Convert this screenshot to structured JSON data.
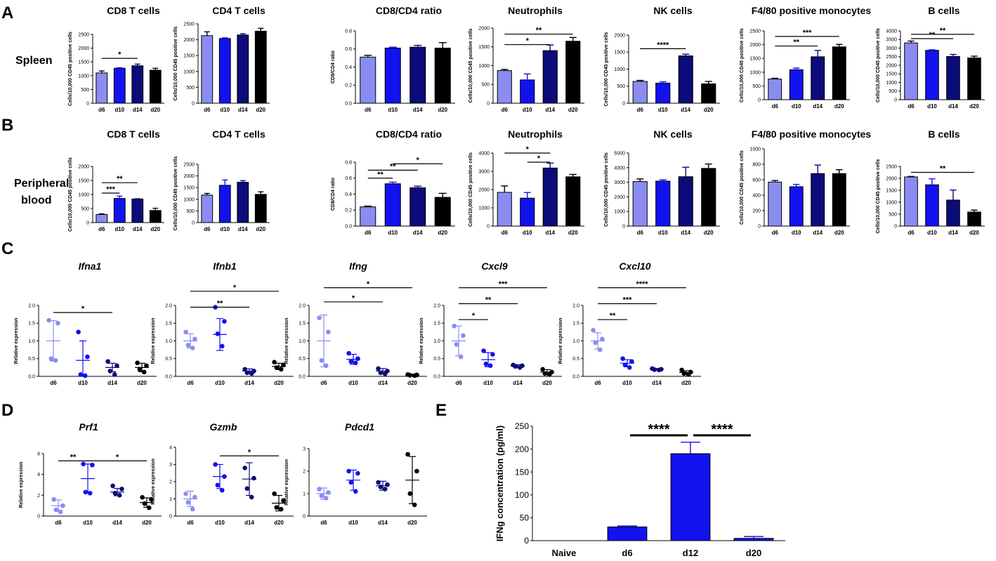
{
  "figure": {
    "panel_letters": [
      "A",
      "B",
      "C",
      "D",
      "E"
    ],
    "row_labels": {
      "spleen": "Spleen",
      "peripheral_line1": "Peripheral",
      "peripheral_line2": "blood"
    },
    "colors": {
      "d6": "#8a8cf2",
      "d10": "#1212ee",
      "d14": "#0b0b7a",
      "d20": "#000000",
      "axis": "#000000"
    }
  },
  "chart_data": [
    {
      "id": "A1",
      "type": "bar",
      "title": "CD8 T cells",
      "ylabel": "Cells/10,000 CD45 positive cells",
      "ylim": [
        0,
        2500
      ],
      "yticks": [
        0,
        500,
        1000,
        1500,
        2000,
        2500
      ],
      "categories": [
        "d6",
        "d10",
        "d14",
        "d20"
      ],
      "values": [
        1100,
        1270,
        1360,
        1200
      ],
      "errors": [
        70,
        20,
        60,
        70
      ],
      "sig": [
        {
          "from": 0,
          "to": 2,
          "label": "*",
          "y": 1630
        }
      ]
    },
    {
      "id": "A2",
      "type": "bar",
      "title": "CD4 T cells",
      "ylabel": "Cells/10,000 CD45 positive cells",
      "ylim": [
        0,
        2500
      ],
      "yticks": [
        0,
        500,
        1000,
        1500,
        2000,
        2500
      ],
      "categories": [
        "d6",
        "d10",
        "d14",
        "d20"
      ],
      "values": [
        2130,
        2040,
        2150,
        2270
      ],
      "errors": [
        120,
        20,
        40,
        90
      ],
      "sig": []
    },
    {
      "id": "A3",
      "type": "bar",
      "title": "CD8/CD4 ratio",
      "ylabel": "CD8/CD4 ratio",
      "ylim": [
        0,
        0.8
      ],
      "yticks": [
        0.0,
        0.2,
        0.4,
        0.6,
        0.8
      ],
      "categories": [
        "d6",
        "d10",
        "d14",
        "d20"
      ],
      "values": [
        0.51,
        0.61,
        0.62,
        0.61
      ],
      "errors": [
        0.02,
        0.01,
        0.02,
        0.06
      ],
      "sig": []
    },
    {
      "id": "A4",
      "type": "bar",
      "title": "Neutrophils",
      "ylabel": "Cells/10,000 CD45 positive cells",
      "ylim": [
        0,
        2000
      ],
      "yticks": [
        0,
        500,
        1000,
        1500,
        2000
      ],
      "categories": [
        "d6",
        "d10",
        "d14",
        "d20"
      ],
      "values": [
        870,
        620,
        1400,
        1650
      ],
      "errors": [
        30,
        160,
        150,
        100
      ],
      "sig": [
        {
          "from": 0,
          "to": 2,
          "label": "*",
          "y": 1560
        },
        {
          "from": 0,
          "to": 3,
          "label": "**",
          "y": 1840
        }
      ]
    },
    {
      "id": "A5",
      "type": "bar",
      "title": "NK cells",
      "ylabel": "Cells/10,000 CD45 positive cells",
      "ylim": [
        0,
        2000
      ],
      "yticks": [
        0,
        500,
        1000,
        1500,
        2000
      ],
      "categories": [
        "d6",
        "d10",
        "d14",
        "d20"
      ],
      "values": [
        640,
        590,
        1390,
        570
      ],
      "errors": [
        30,
        40,
        50,
        70
      ],
      "sig": [
        {
          "from": 0,
          "to": 2,
          "label": "****",
          "y": 1600
        }
      ]
    },
    {
      "id": "A6",
      "type": "bar",
      "title": "F4/80 positive monocytes",
      "ylabel": "Cells/10,000 CD45 positive cells",
      "ylim": [
        0,
        2500
      ],
      "yticks": [
        0,
        500,
        1000,
        1500,
        2000,
        2500
      ],
      "categories": [
        "d6",
        "d10",
        "d14",
        "d20"
      ],
      "values": [
        750,
        1090,
        1560,
        1920
      ],
      "errors": [
        30,
        60,
        230,
        90
      ],
      "sig": [
        {
          "from": 0,
          "to": 2,
          "label": "**",
          "y": 1950
        },
        {
          "from": 0,
          "to": 3,
          "label": "***",
          "y": 2300
        }
      ]
    },
    {
      "id": "A7",
      "type": "bar",
      "title": "B cells",
      "ylabel": "Cells/10,000 CD45 positive cells",
      "ylim": [
        0,
        4000
      ],
      "yticks": [
        0,
        500,
        1000,
        1500,
        2000,
        2500,
        3000,
        3500,
        4000
      ],
      "categories": [
        "d6",
        "d10",
        "d14",
        "d20"
      ],
      "values": [
        3300,
        2870,
        2510,
        2430
      ],
      "errors": [
        110,
        30,
        120,
        100
      ],
      "sig": [
        {
          "from": 0,
          "to": 2,
          "label": "**",
          "y": 3550
        },
        {
          "from": 0,
          "to": 3,
          "label": "**",
          "y": 3800
        }
      ]
    },
    {
      "id": "B1",
      "type": "bar",
      "title": "CD8 T cells",
      "ylabel": "Cells/10,000 CD45 positive cells",
      "ylim": [
        0,
        2000
      ],
      "yticks": [
        0,
        500,
        1000,
        1500,
        2000
      ],
      "categories": [
        "d6",
        "d10",
        "d14",
        "d20"
      ],
      "values": [
        290,
        860,
        840,
        430
      ],
      "errors": [
        20,
        80,
        10,
        80
      ],
      "sig": [
        {
          "from": 0,
          "to": 1,
          "label": "***",
          "y": 1050
        },
        {
          "from": 0,
          "to": 2,
          "label": "**",
          "y": 1420
        }
      ]
    },
    {
      "id": "B2",
      "type": "bar",
      "title": "CD4 T cells",
      "ylabel": "Cells/10,000 CD45 positive cells",
      "ylim": [
        0,
        2500
      ],
      "yticks": [
        0,
        500,
        1000,
        1500,
        2000,
        2500
      ],
      "categories": [
        "d6",
        "d10",
        "d14",
        "d20"
      ],
      "values": [
        1180,
        1600,
        1730,
        1210
      ],
      "errors": [
        70,
        230,
        70,
        110
      ],
      "sig": []
    },
    {
      "id": "B3",
      "type": "bar",
      "title": "CD8/CD4 ratio",
      "ylabel": "CD8/CD4 ratio",
      "ylim": [
        0,
        0.8
      ],
      "yticks": [
        0.0,
        0.2,
        0.4,
        0.6,
        0.8
      ],
      "categories": [
        "d6",
        "d10",
        "d14",
        "d20"
      ],
      "values": [
        0.24,
        0.53,
        0.48,
        0.36
      ],
      "errors": [
        0.01,
        0.02,
        0.02,
        0.05
      ],
      "sig": [
        {
          "from": 0,
          "to": 1,
          "label": "**",
          "y": 0.6
        },
        {
          "from": 0,
          "to": 2,
          "label": "**",
          "y": 0.7
        },
        {
          "from": 1,
          "to": 3,
          "label": "*",
          "y": 0.78
        }
      ]
    },
    {
      "id": "B4",
      "type": "bar",
      "title": "Neutrophils",
      "ylabel": "Cells/10,000 CD45 positive cells",
      "ylim": [
        0,
        4000
      ],
      "yticks": [
        0,
        1000,
        2000,
        3000,
        4000
      ],
      "categories": [
        "d6",
        "d10",
        "d14",
        "d20"
      ],
      "values": [
        1850,
        1530,
        3180,
        2700
      ],
      "errors": [
        350,
        310,
        270,
        130
      ],
      "sig": [
        {
          "from": 1,
          "to": 2,
          "label": "*",
          "y": 3500
        },
        {
          "from": 0,
          "to": 2,
          "label": "*",
          "y": 4000
        }
      ]
    },
    {
      "id": "B5",
      "type": "bar",
      "title": "NK cells",
      "ylabel": "Cells/10,000 CD45 positive cells",
      "ylim": [
        0,
        5000
      ],
      "yticks": [
        0,
        1000,
        2000,
        3000,
        4000,
        5000
      ],
      "categories": [
        "d6",
        "d10",
        "d14",
        "d20"
      ],
      "values": [
        3050,
        3080,
        3380,
        3950
      ],
      "errors": [
        180,
        90,
        650,
        300
      ],
      "sig": []
    },
    {
      "id": "B6",
      "type": "bar",
      "title": "F4/80 positive monocytes",
      "ylabel": "Cells/10,000 CD45 positive cells",
      "ylim": [
        0,
        1000
      ],
      "yticks": [
        0,
        200,
        400,
        600,
        800,
        1000
      ],
      "categories": [
        "d6",
        "d10",
        "d14",
        "d20"
      ],
      "values": [
        570,
        510,
        680,
        680
      ],
      "errors": [
        20,
        30,
        110,
        50
      ],
      "sig": []
    },
    {
      "id": "B7",
      "type": "bar",
      "title": "B cells",
      "ylabel": "Cells/10,000 CD45 positive cells",
      "ylim": [
        0,
        2500
      ],
      "yticks": [
        0,
        500,
        1000,
        1500,
        2000,
        2500
      ],
      "categories": [
        "d6",
        "d10",
        "d14",
        "d20"
      ],
      "values": [
        2060,
        1730,
        1090,
        590
      ],
      "errors": [
        20,
        250,
        420,
        80
      ],
      "sig": [
        {
          "from": 0,
          "to": 3,
          "label": "**",
          "y": 2250
        }
      ]
    },
    {
      "id": "C1",
      "type": "scatter",
      "title": "Ifna1",
      "ylabel": "Relative expression",
      "ylim": [
        0,
        2.0
      ],
      "yticks": [
        0.0,
        0.5,
        1.0,
        1.5,
        2.0
      ],
      "categories": [
        "d6",
        "d10",
        "d14",
        "d20"
      ],
      "points": [
        [
          1.58,
          1.5,
          0.5,
          0.45
        ],
        [
          1.25,
          0.55,
          0.05,
          0.02
        ],
        [
          0.42,
          0.3,
          0.15,
          0.05
        ],
        [
          0.38,
          0.3,
          0.2,
          0.12
        ]
      ],
      "means": [
        1.0,
        0.45,
        0.25,
        0.25
      ],
      "sds": [
        0.57,
        0.55,
        0.12,
        0.12
      ],
      "sig": [
        {
          "from": 0,
          "to": 2,
          "label": "*",
          "y": 1.8
        }
      ]
    },
    {
      "id": "C2",
      "type": "scatter",
      "title": "Ifnb1",
      "ylabel": "Relative expression",
      "ylim": [
        0,
        2.0
      ],
      "yticks": [
        0.0,
        0.5,
        1.0,
        1.5,
        2.0
      ],
      "categories": [
        "d6",
        "d10",
        "d14",
        "d20"
      ],
      "points": [
        [
          1.25,
          1.05,
          0.88,
          0.8
        ],
        [
          1.95,
          1.55,
          1.2,
          0.85
        ],
        [
          0.2,
          0.15,
          0.1,
          0.08
        ],
        [
          0.4,
          0.32,
          0.25,
          0.2
        ]
      ],
      "means": [
        1.0,
        1.18,
        0.15,
        0.28
      ],
      "sds": [
        0.2,
        0.45,
        0.06,
        0.09
      ],
      "sig": [
        {
          "from": 0,
          "to": 2,
          "label": "**",
          "y": 1.95
        },
        {
          "from": 0,
          "to": 3,
          "label": "*",
          "y": 2.4
        }
      ]
    },
    {
      "id": "C3",
      "type": "scatter",
      "title": "Ifng",
      "ylabel": "Relative expression",
      "ylim": [
        0,
        2.0
      ],
      "yticks": [
        0.0,
        0.5,
        1.0,
        1.5,
        2.0
      ],
      "categories": [
        "d6",
        "d10",
        "d14",
        "d20"
      ],
      "points": [
        [
          1.65,
          1.25,
          0.45,
          0.3
        ],
        [
          0.65,
          0.5,
          0.42,
          0.38
        ],
        [
          0.22,
          0.15,
          0.1,
          0.07
        ],
        [
          0.05,
          0.04,
          0.03,
          0.02
        ]
      ],
      "means": [
        1.0,
        0.48,
        0.15,
        0.04
      ],
      "sds": [
        0.73,
        0.14,
        0.07,
        0.02
      ],
      "sig": [
        {
          "from": 0,
          "to": 2,
          "label": "*",
          "y": 2.1
        },
        {
          "from": 0,
          "to": 3,
          "label": "*",
          "y": 2.5
        }
      ]
    },
    {
      "id": "C4",
      "type": "scatter",
      "title": "Cxcl9",
      "ylabel": "Relative expression",
      "ylim": [
        0,
        2.0
      ],
      "yticks": [
        0.0,
        0.5,
        1.0,
        1.5,
        2.0
      ],
      "categories": [
        "d6",
        "d10",
        "d14",
        "d20"
      ],
      "points": [
        [
          1.42,
          1.15,
          0.9,
          0.55
        ],
        [
          0.72,
          0.62,
          0.35,
          0.3
        ],
        [
          0.32,
          0.3,
          0.28,
          0.25
        ],
        [
          0.2,
          0.12,
          0.08,
          0.05
        ]
      ],
      "means": [
        1.0,
        0.47,
        0.29,
        0.12
      ],
      "sds": [
        0.42,
        0.2,
        0.04,
        0.07
      ],
      "sig": [
        {
          "from": 0,
          "to": 1,
          "label": "*",
          "y": 1.6
        },
        {
          "from": 0,
          "to": 2,
          "label": "**",
          "y": 2.05
        },
        {
          "from": 0,
          "to": 3,
          "label": "***",
          "y": 2.5
        }
      ]
    },
    {
      "id": "C5",
      "type": "scatter",
      "title": "Cxcl10",
      "ylabel": "Relative expression",
      "ylim": [
        0,
        2.0
      ],
      "yticks": [
        0.0,
        0.5,
        1.0,
        1.5,
        2.0
      ],
      "categories": [
        "d6",
        "d10",
        "d14",
        "d20"
      ],
      "points": [
        [
          1.3,
          1.05,
          0.95,
          0.75
        ],
        [
          0.5,
          0.42,
          0.32,
          0.25
        ],
        [
          0.22,
          0.2,
          0.19,
          0.18
        ],
        [
          0.18,
          0.12,
          0.08,
          0.05
        ]
      ],
      "means": [
        1.0,
        0.37,
        0.2,
        0.11
      ],
      "sds": [
        0.23,
        0.1,
        0.02,
        0.05
      ],
      "sig": [
        {
          "from": 0,
          "to": 1,
          "label": "**",
          "y": 1.6
        },
        {
          "from": 0,
          "to": 2,
          "label": "***",
          "y": 2.05
        },
        {
          "from": 0,
          "to": 3,
          "label": "****",
          "y": 2.5
        }
      ]
    },
    {
      "id": "D1",
      "type": "scatter",
      "title": "Prf1",
      "ylabel": "Relative expression",
      "ylim": [
        0,
        6
      ],
      "yticks": [
        0,
        2,
        4,
        6
      ],
      "categories": [
        "d6",
        "d10",
        "d14",
        "d20"
      ],
      "points": [
        [
          1.6,
          1.0,
          0.6,
          0.4
        ],
        [
          5.0,
          4.9,
          2.3,
          2.2
        ],
        [
          2.9,
          2.6,
          2.2,
          2.0
        ],
        [
          1.8,
          1.6,
          1.2,
          0.8
        ]
      ],
      "means": [
        1.0,
        3.6,
        2.3,
        1.3
      ],
      "sds": [
        0.55,
        1.4,
        0.35,
        0.45
      ],
      "sig": [
        {
          "from": 0,
          "to": 1,
          "label": "**",
          "y": 5.3
        },
        {
          "from": 1,
          "to": 3,
          "label": "*",
          "y": 5.3
        }
      ]
    },
    {
      "id": "D2",
      "type": "scatter",
      "title": "Gzmb",
      "ylabel": "Relative expression",
      "ylim": [
        0,
        4
      ],
      "yticks": [
        0,
        1,
        2,
        3,
        4
      ],
      "categories": [
        "d6",
        "d10",
        "d14",
        "d20"
      ],
      "points": [
        [
          1.3,
          1.1,
          0.8,
          0.4
        ],
        [
          3.0,
          2.3,
          1.8,
          1.5
        ],
        [
          2.8,
          2.2,
          1.6,
          1.1
        ],
        [
          1.3,
          0.9,
          0.5,
          0.4
        ]
      ],
      "means": [
        1.0,
        2.3,
        2.15,
        0.75
      ],
      "sds": [
        0.45,
        0.7,
        0.95,
        0.45
      ],
      "sig": [
        {
          "from": 1,
          "to": 3,
          "label": "*",
          "y": 3.5
        }
      ]
    },
    {
      "id": "D3",
      "type": "scatter",
      "title": "Pdcd1",
      "ylabel": "Relative expression",
      "ylim": [
        0,
        3
      ],
      "yticks": [
        0,
        1,
        2,
        3
      ],
      "categories": [
        "d6",
        "d10",
        "d14",
        "d20"
      ],
      "points": [
        [
          1.2,
          1.05,
          0.9,
          0.8
        ],
        [
          2.0,
          1.9,
          1.5,
          1.1
        ],
        [
          1.5,
          1.4,
          1.3,
          1.2
        ],
        [
          2.75,
          2.0,
          1.0,
          0.5
        ]
      ],
      "means": [
        1.0,
        1.6,
        1.35,
        1.6
      ],
      "sds": [
        0.25,
        0.45,
        0.2,
        1.05
      ],
      "sig": []
    },
    {
      "id": "E",
      "type": "bar",
      "title": "",
      "ylabel": "IFNg concentration (pg/ml)",
      "ylim": [
        0,
        250
      ],
      "yticks": [
        0,
        50,
        100,
        150,
        200,
        250
      ],
      "categories": [
        "Naive",
        "d6",
        "d12",
        "d20"
      ],
      "values": [
        0,
        30,
        190,
        5
      ],
      "errors": [
        0,
        2,
        25,
        4
      ],
      "sig": [
        {
          "from": 1,
          "to": 2,
          "label": "****",
          "y": 230
        },
        {
          "from": 2,
          "to": 3,
          "label": "****",
          "y": 230
        }
      ]
    }
  ]
}
